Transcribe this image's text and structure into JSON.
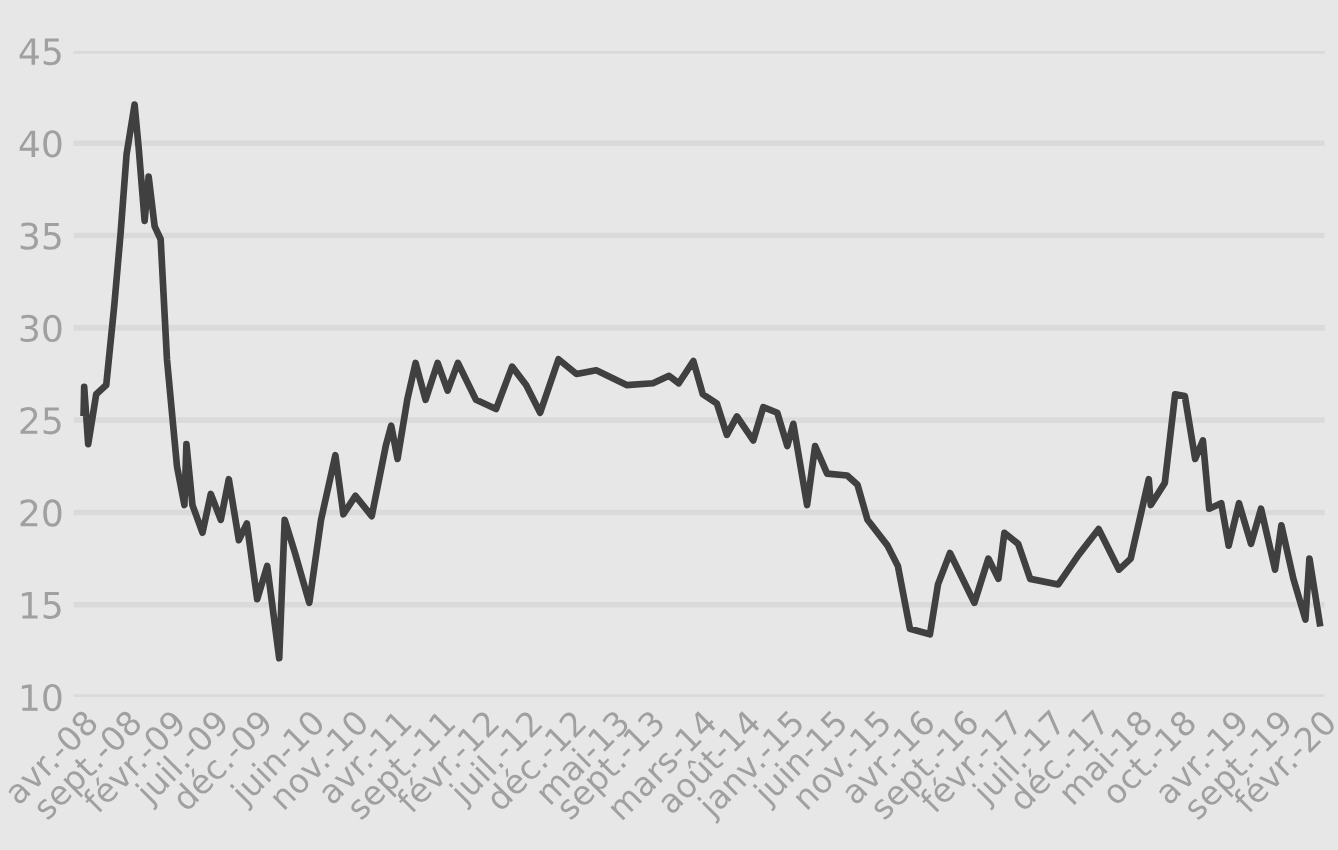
{
  "chart_data": {
    "type": "line",
    "x": [
      "2008-04-05",
      "2008-04-07",
      "2008-04-21",
      "2008-05-19",
      "2008-06-23",
      "2008-07-21",
      "2008-08-12",
      "2008-09-02",
      "2008-09-30",
      "2008-10-14",
      "2008-11-04",
      "2008-11-18",
      "2008-12-09",
      "2008-12-30",
      "2009-01-21",
      "2009-02-25",
      "2009-03-23",
      "2009-03-30",
      "2009-04-20",
      "2009-05-25",
      "2009-06-23",
      "2009-07-28",
      "2009-08-25",
      "2009-09-29",
      "2009-10-27",
      "2009-12-02",
      "2010-01-06",
      "2010-02-17",
      "2010-03-08",
      "2010-04-13",
      "2010-06-02",
      "2010-07-13",
      "2010-09-01",
      "2010-09-29",
      "2010-11-10",
      "2011-01-06",
      "2011-02-24",
      "2011-03-15",
      "2011-04-06",
      "2011-05-10",
      "2011-06-08",
      "2011-07-13",
      "2011-08-24",
      "2011-09-28",
      "2011-11-03",
      "2012-01-05",
      "2012-03-15",
      "2012-05-10",
      "2012-06-28",
      "2012-08-16",
      "2012-10-19",
      "2012-12-21",
      "2013-02-28",
      "2013-06-14",
      "2013-09-14",
      "2013-11-09",
      "2013-12-13",
      "2014-02-02",
      "2014-03-07",
      "2014-04-25",
      "2014-05-30",
      "2014-07-04",
      "2014-08-30",
      "2014-10-04",
      "2014-11-22",
      "2014-12-27",
      "2015-01-17",
      "2015-03-06",
      "2015-04-03",
      "2015-05-15",
      "2015-07-24",
      "2015-08-29",
      "2015-10-03",
      "2015-12-12",
      "2016-01-17",
      "2016-02-28",
      "2016-05-08",
      "2016-06-05",
      "2016-07-17",
      "2016-10-10",
      "2016-11-28",
      "2017-01-02",
      "2017-01-23",
      "2017-03-12",
      "2017-04-23",
      "2017-07-30",
      "2017-10-09",
      "2017-12-18",
      "2018-02-27",
      "2018-04-09",
      "2018-06-11",
      "2018-06-18",
      "2018-08-06",
      "2018-09-11",
      "2018-10-15",
      "2018-11-20",
      "2018-12-17",
      "2019-01-08",
      "2019-02-19",
      "2019-03-17",
      "2019-04-22",
      "2019-06-03",
      "2019-07-08",
      "2019-08-26",
      "2019-09-17",
      "2019-10-29",
      "2019-12-10",
      "2019-12-24",
      "2020-01-29"
    ],
    "series": [
      {
        "color": "#404040",
        "values": [
          25.4,
          26.8,
          23.7,
          26.4,
          26.9,
          31.2,
          35.1,
          39.4,
          42.1,
          39.8,
          35.8,
          38.2,
          35.5,
          34.8,
          28.3,
          22.5,
          20.4,
          23.7,
          20.4,
          18.9,
          21.0,
          19.6,
          21.8,
          18.5,
          19.4,
          15.3,
          17.1,
          12.1,
          19.6,
          17.8,
          15.1,
          19.6,
          23.1,
          19.9,
          20.9,
          19.8,
          23.6,
          24.7,
          22.9,
          26.1,
          28.1,
          26.1,
          28.1,
          26.6,
          28.1,
          26.1,
          25.6,
          27.9,
          26.9,
          25.4,
          28.3,
          27.5,
          27.7,
          26.9,
          27.0,
          27.4,
          27.0,
          28.2,
          26.4,
          25.9,
          24.2,
          25.2,
          23.9,
          25.7,
          25.4,
          23.6,
          24.8,
          20.4,
          23.6,
          22.1,
          22.0,
          21.5,
          19.6,
          18.2,
          17.1,
          13.7,
          13.4,
          16.1,
          17.8,
          15.1,
          17.5,
          16.4,
          18.9,
          18.3,
          16.4,
          16.1,
          17.7,
          19.1,
          16.9,
          17.5,
          21.8,
          20.4,
          21.6,
          26.4,
          26.3,
          22.9,
          23.9,
          20.2,
          20.5,
          18.2,
          20.5,
          18.3,
          20.2,
          16.9,
          19.3,
          16.4,
          14.2,
          17.5,
          14.0
        ]
      }
    ],
    "xlim": [
      "2008-03-01",
      "2020-02-15"
    ],
    "xticks": [
      {
        "value": "2008-04-01",
        "label": "avr.-08"
      },
      {
        "value": "2008-09-01",
        "label": "sept.-08"
      },
      {
        "value": "2009-02-01",
        "label": "févr.-09"
      },
      {
        "value": "2009-07-01",
        "label": "juil.-09"
      },
      {
        "value": "2009-12-01",
        "label": "déc.-09"
      },
      {
        "value": "2010-06-01",
        "label": "juin-10"
      },
      {
        "value": "2010-11-01",
        "label": "nov.-10"
      },
      {
        "value": "2011-04-01",
        "label": "avr.-11"
      },
      {
        "value": "2011-09-01",
        "label": "sept.-11"
      },
      {
        "value": "2012-02-01",
        "label": "févr.-12"
      },
      {
        "value": "2012-07-01",
        "label": "juil.-12"
      },
      {
        "value": "2012-12-01",
        "label": "déc.-12"
      },
      {
        "value": "2013-05-01",
        "label": "mai-13"
      },
      {
        "value": "2013-09-01",
        "label": "sept.-13"
      },
      {
        "value": "2014-03-01",
        "label": "mars-14"
      },
      {
        "value": "2014-08-01",
        "label": "août-14"
      },
      {
        "value": "2015-01-01",
        "label": "janv.-15"
      },
      {
        "value": "2015-06-01",
        "label": "juin-15"
      },
      {
        "value": "2015-11-01",
        "label": "nov.-15"
      },
      {
        "value": "2016-04-01",
        "label": "avr.-16"
      },
      {
        "value": "2016-09-01",
        "label": "sept.-16"
      },
      {
        "value": "2017-02-01",
        "label": "févr.-17"
      },
      {
        "value": "2017-07-01",
        "label": "juil.-17"
      },
      {
        "value": "2017-12-01",
        "label": "déc.-17"
      },
      {
        "value": "2018-05-01",
        "label": "mai-18"
      },
      {
        "value": "2018-10-01",
        "label": "oct.-18"
      },
      {
        "value": "2019-04-01",
        "label": "avr.-19"
      },
      {
        "value": "2019-09-01",
        "label": "sept.-19"
      },
      {
        "value": "2020-02-01",
        "label": "févr.-20"
      }
    ],
    "ylim": [
      10,
      45
    ],
    "yticks": [
      10,
      15,
      20,
      25,
      30,
      35,
      40,
      45
    ],
    "grid": "y",
    "legend": false,
    "marker": "none",
    "line_style": "solid"
  }
}
